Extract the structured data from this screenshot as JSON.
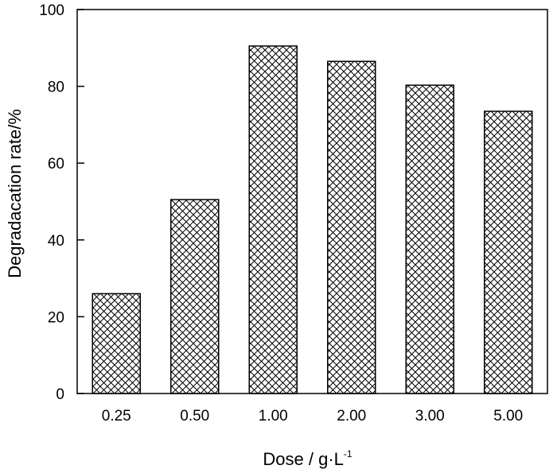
{
  "chart_data": {
    "type": "bar",
    "categories": [
      "0.25",
      "0.50",
      "1.00",
      "2.00",
      "3.00",
      "5.00"
    ],
    "values": [
      26,
      50.5,
      90.5,
      86.5,
      80.3,
      73.5
    ],
    "xlabel": "Dose / g·L",
    "xlabel_sup": "-1",
    "ylabel": "Degradacation rate/%",
    "ylim": [
      0,
      100
    ],
    "yticks": [
      "0",
      "20",
      "40",
      "60",
      "80",
      "100"
    ],
    "grid": false,
    "legend": "none",
    "colors": {
      "bar_fill": "#ffffff",
      "bar_hatch": "#000000",
      "axis": "#000000"
    },
    "bar_pattern": "crosshatch"
  }
}
